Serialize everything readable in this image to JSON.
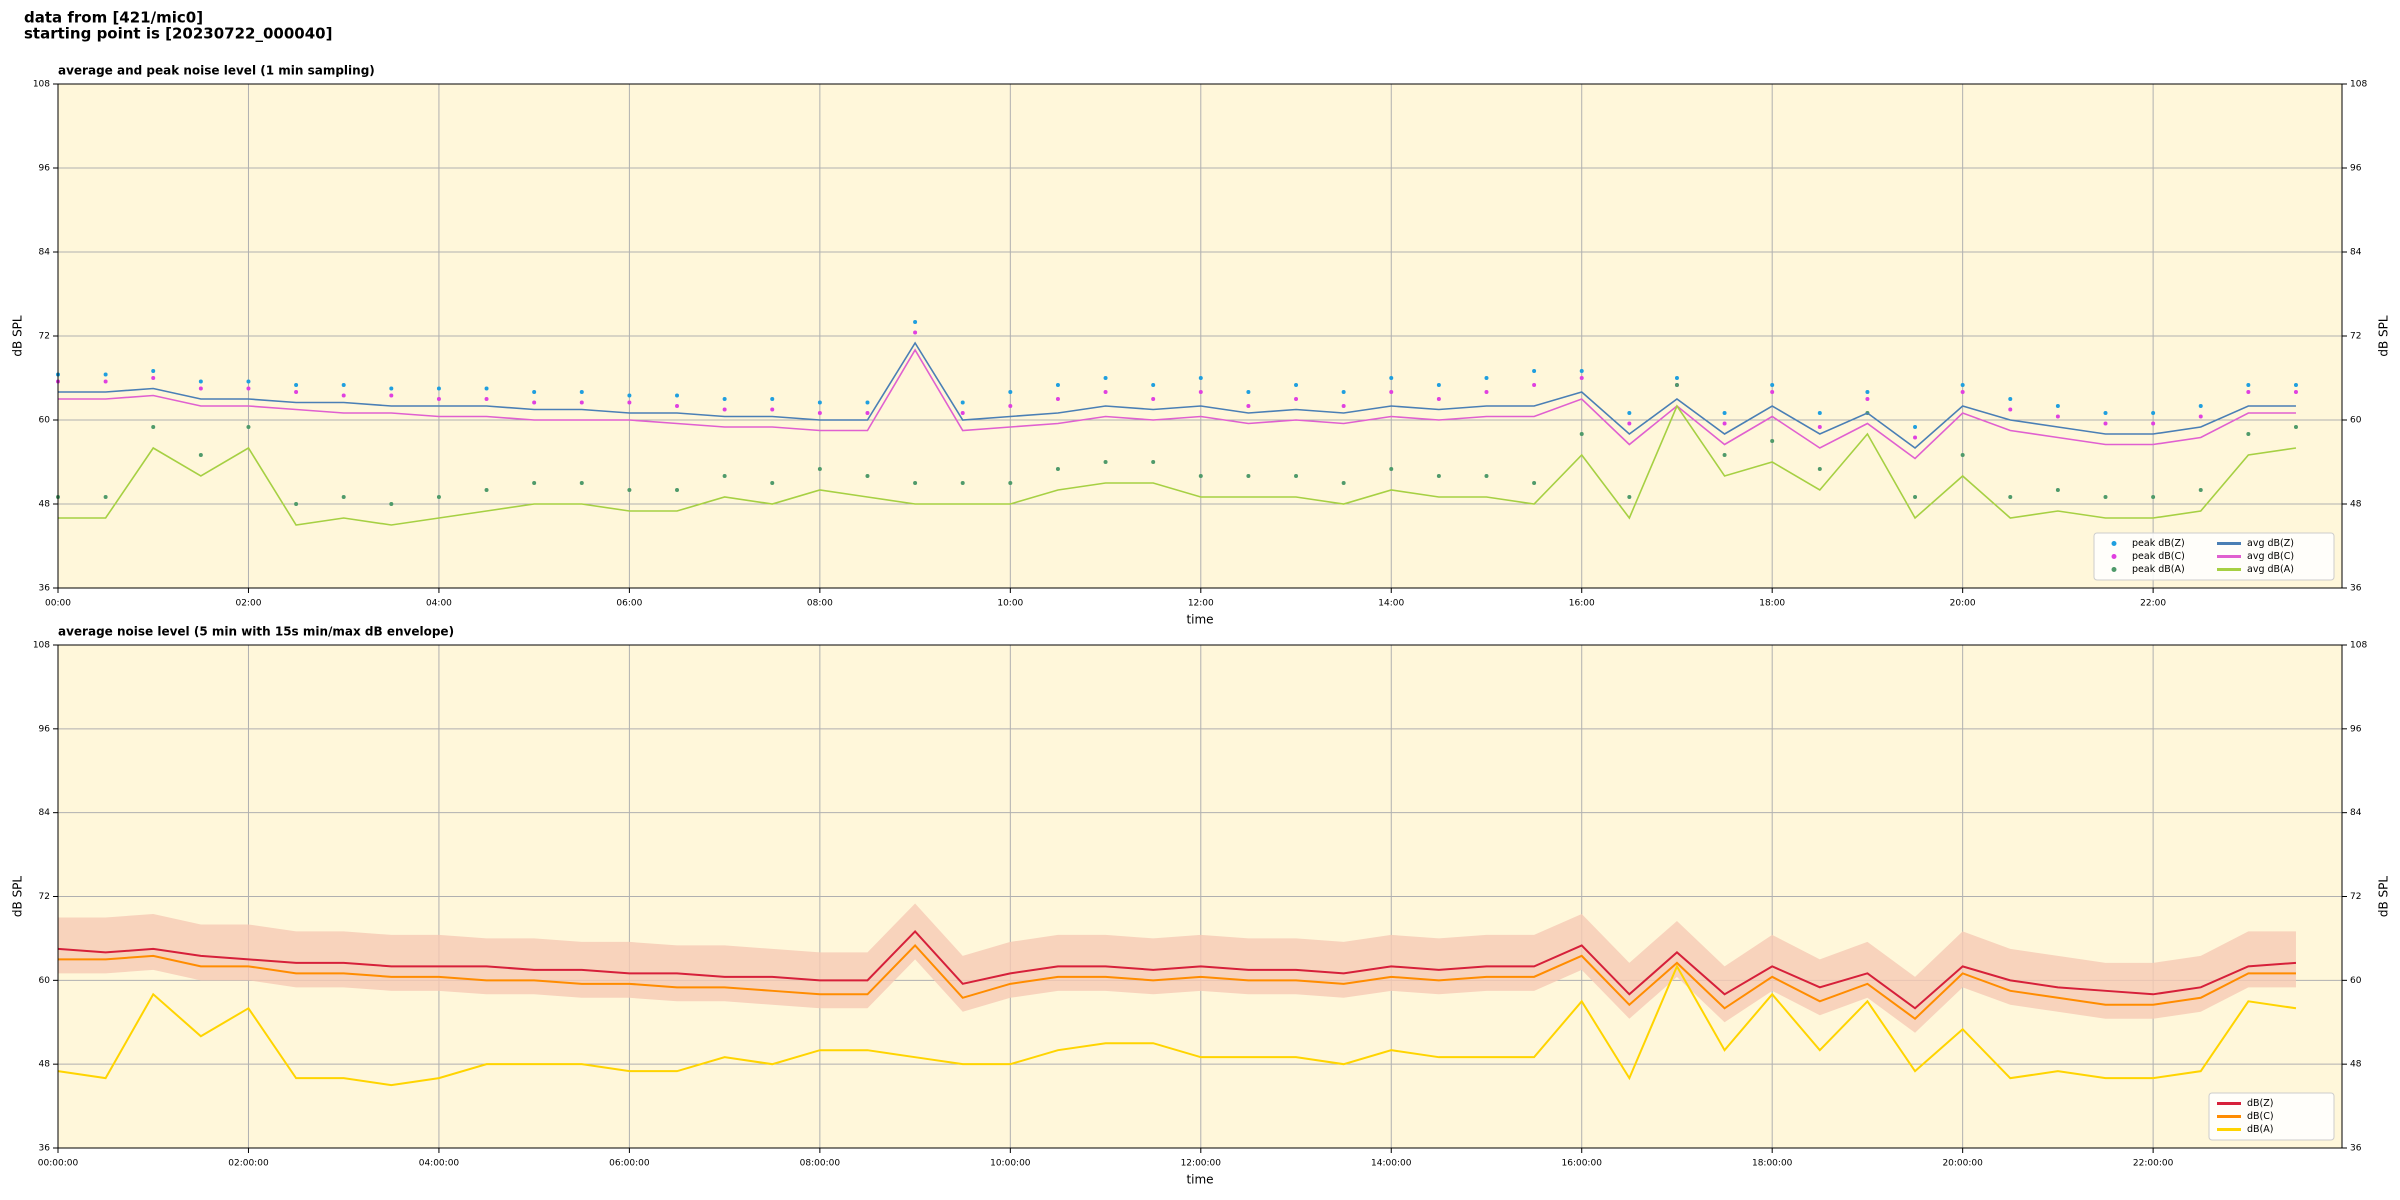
{
  "header": [
    "data from [421/mic0]",
    "starting point is [20230722_000040]"
  ],
  "chart_data": [
    {
      "type": "line",
      "title": "average and peak noise level (1 min sampling)",
      "xlabel": "time",
      "ylabel": "dB SPL",
      "y2label": "dB SPL",
      "x": [
        "00:00",
        "00:30",
        "01:00",
        "01:30",
        "02:00",
        "02:30",
        "03:00",
        "03:30",
        "04:00",
        "04:30",
        "05:00",
        "05:30",
        "06:00",
        "06:30",
        "07:00",
        "07:30",
        "08:00",
        "08:30",
        "09:00",
        "09:30",
        "10:00",
        "10:30",
        "11:00",
        "11:30",
        "12:00",
        "12:30",
        "13:00",
        "13:30",
        "14:00",
        "14:30",
        "15:00",
        "15:30",
        "16:00",
        "16:30",
        "17:00",
        "17:30",
        "18:00",
        "18:30",
        "19:00",
        "19:30",
        "20:00",
        "20:30",
        "21:00",
        "21:30",
        "22:00",
        "22:30",
        "23:00",
        "23:30"
      ],
      "xlim": [
        "00:00",
        "23:59"
      ],
      "xticks": [
        "00:00",
        "02:00",
        "04:00",
        "06:00",
        "08:00",
        "10:00",
        "12:00",
        "14:00",
        "16:00",
        "18:00",
        "20:00",
        "22:00"
      ],
      "ylim": [
        36,
        108
      ],
      "yticks": [
        36,
        48,
        60,
        72,
        84,
        96,
        108
      ],
      "y2lim": [
        36,
        108
      ],
      "y2ticks": [
        36,
        48,
        60,
        72,
        84,
        96,
        108
      ],
      "grid": true,
      "legend": "lower right",
      "legend_columns": 2,
      "series": [
        {
          "name": "peak dB(Z)",
          "style": "dots",
          "color": "#1f9fdf",
          "values": [
            66.5,
            66.5,
            67,
            65.5,
            65.5,
            65,
            65,
            64.5,
            64.5,
            64.5,
            64,
            64,
            63.5,
            63.5,
            63,
            63,
            62.5,
            62.5,
            74,
            62.5,
            64,
            65,
            66,
            65,
            66,
            64,
            65,
            64,
            66,
            65,
            66,
            67,
            67,
            61,
            66,
            61,
            65,
            61,
            64,
            59,
            65,
            63,
            62,
            61,
            61,
            62,
            65,
            65
          ]
        },
        {
          "name": "peak dB(C)",
          "style": "dots",
          "color": "#e040e0",
          "values": [
            65.5,
            65.5,
            66,
            64.5,
            64.5,
            64,
            63.5,
            63.5,
            63,
            63,
            62.5,
            62.5,
            62.5,
            62,
            61.5,
            61.5,
            61,
            61,
            72.5,
            61,
            62,
            63,
            64,
            63,
            64,
            62,
            63,
            62,
            64,
            63,
            64,
            65,
            66,
            59.5,
            65,
            59.5,
            64,
            59,
            63,
            57.5,
            64,
            61.5,
            60.5,
            59.5,
            59.5,
            60.5,
            64,
            64
          ]
        },
        {
          "name": "peak dB(A)",
          "style": "dots",
          "color": "#4f9a6a",
          "values": [
            49,
            49,
            59,
            55,
            59,
            48,
            49,
            48,
            49,
            50,
            51,
            51,
            50,
            50,
            52,
            51,
            53,
            52,
            51,
            51,
            51,
            53,
            54,
            54,
            52,
            52,
            52,
            51,
            53,
            52,
            52,
            51,
            58,
            49,
            65,
            55,
            57,
            53,
            61,
            49,
            55,
            49,
            50,
            49,
            49,
            50,
            58,
            59
          ]
        },
        {
          "name": "avg dB(Z)",
          "style": "line",
          "color": "#4a7fb5",
          "values": [
            64,
            64,
            64.5,
            63,
            63,
            62.5,
            62.5,
            62,
            62,
            62,
            61.5,
            61.5,
            61,
            61,
            60.5,
            60.5,
            60,
            60,
            71,
            60,
            60.5,
            61,
            62,
            61.5,
            62,
            61,
            61.5,
            61,
            62,
            61.5,
            62,
            62,
            64,
            58,
            63,
            58,
            62,
            58,
            61,
            56,
            62,
            60,
            59,
            58,
            58,
            59,
            62,
            62
          ]
        },
        {
          "name": "avg dB(C)",
          "style": "line",
          "color": "#e060d0",
          "values": [
            63,
            63,
            63.5,
            62,
            62,
            61.5,
            61,
            61,
            60.5,
            60.5,
            60,
            60,
            60,
            59.5,
            59,
            59,
            58.5,
            58.5,
            70,
            58.5,
            59,
            59.5,
            60.5,
            60,
            60.5,
            59.5,
            60,
            59.5,
            60.5,
            60,
            60.5,
            60.5,
            63,
            56.5,
            62,
            56.5,
            60.5,
            56,
            59.5,
            54.5,
            61,
            58.5,
            57.5,
            56.5,
            56.5,
            57.5,
            61,
            61
          ]
        },
        {
          "name": "avg dB(A)",
          "style": "line",
          "color": "#a6d043",
          "values": [
            46,
            46,
            56,
            52,
            56,
            45,
            46,
            45,
            46,
            47,
            48,
            48,
            47,
            47,
            49,
            48,
            50,
            49,
            48,
            48,
            48,
            50,
            51,
            51,
            49,
            49,
            49,
            48,
            50,
            49,
            49,
            48,
            55,
            46,
            62,
            52,
            54,
            50,
            58,
            46,
            52,
            46,
            47,
            46,
            46,
            47,
            55,
            56
          ]
        }
      ]
    },
    {
      "type": "line",
      "title": "average noise level (5 min with 15s min/max dB envelope)",
      "xlabel": "time",
      "ylabel": "dB SPL",
      "y2label": "dB SPL",
      "x": [
        "00:00:00",
        "00:30:00",
        "01:00:00",
        "01:30:00",
        "02:00:00",
        "02:30:00",
        "03:00:00",
        "03:30:00",
        "04:00:00",
        "04:30:00",
        "05:00:00",
        "05:30:00",
        "06:00:00",
        "06:30:00",
        "07:00:00",
        "07:30:00",
        "08:00:00",
        "08:30:00",
        "09:00:00",
        "09:30:00",
        "10:00:00",
        "10:30:00",
        "11:00:00",
        "11:30:00",
        "12:00:00",
        "12:30:00",
        "13:00:00",
        "13:30:00",
        "14:00:00",
        "14:30:00",
        "15:00:00",
        "15:30:00",
        "16:00:00",
        "16:30:00",
        "17:00:00",
        "17:30:00",
        "18:00:00",
        "18:30:00",
        "19:00:00",
        "19:30:00",
        "20:00:00",
        "20:30:00",
        "21:00:00",
        "21:30:00",
        "22:00:00",
        "22:30:00",
        "23:00:00",
        "23:30:00"
      ],
      "xlim": [
        "00:00:00",
        "23:59:00"
      ],
      "xticks": [
        "00:00:00",
        "02:00:00",
        "04:00:00",
        "06:00:00",
        "08:00:00",
        "10:00:00",
        "12:00:00",
        "14:00:00",
        "16:00:00",
        "18:00:00",
        "20:00:00",
        "22:00:00"
      ],
      "ylim": [
        36,
        108
      ],
      "yticks": [
        36,
        48,
        60,
        72,
        84,
        96,
        108
      ],
      "y2lim": [
        36,
        108
      ],
      "y2ticks": [
        36,
        48,
        60,
        72,
        84,
        96,
        108
      ],
      "grid": true,
      "legend": "lower right",
      "legend_columns": 1,
      "envelope": {
        "color": "#f6c9b4",
        "high": [
          69,
          69,
          69.5,
          68,
          68,
          67,
          67,
          66.5,
          66.5,
          66,
          66,
          65.5,
          65.5,
          65,
          65,
          64.5,
          64,
          64,
          71,
          63.5,
          65.5,
          66.5,
          66.5,
          66,
          66.5,
          66,
          66,
          65.5,
          66.5,
          66,
          66.5,
          66.5,
          69.5,
          62.5,
          68.5,
          62,
          66.5,
          63,
          65.5,
          60.5,
          67,
          64.5,
          63.5,
          62.5,
          62.5,
          63.5,
          67,
          67
        ],
        "low": [
          61,
          61,
          61.5,
          60,
          60,
          59,
          59,
          58.5,
          58.5,
          58,
          58,
          57.5,
          57.5,
          57,
          57,
          56.5,
          56,
          56,
          63,
          55.5,
          57.5,
          58.5,
          58.5,
          58,
          58.5,
          58,
          58,
          57.5,
          58.5,
          58,
          58.5,
          58.5,
          61.5,
          54.5,
          60.5,
          54,
          58.5,
          55,
          57.5,
          52.5,
          59,
          56.5,
          55.5,
          54.5,
          54.5,
          55.5,
          59,
          59
        ]
      },
      "series": [
        {
          "name": "dB(Z)",
          "style": "line",
          "color": "#d6203a",
          "values": [
            64.5,
            64,
            64.5,
            63.5,
            63,
            62.5,
            62.5,
            62,
            62,
            62,
            61.5,
            61.5,
            61,
            61,
            60.5,
            60.5,
            60,
            60,
            67,
            59.5,
            61,
            62,
            62,
            61.5,
            62,
            61.5,
            61.5,
            61,
            62,
            61.5,
            62,
            62,
            65,
            58,
            64,
            58,
            62,
            59,
            61,
            56,
            62,
            60,
            59,
            58.5,
            58,
            59,
            62,
            62.5
          ]
        },
        {
          "name": "dB(C)",
          "style": "line",
          "color": "#ff8c00",
          "values": [
            63,
            63,
            63.5,
            62,
            62,
            61,
            61,
            60.5,
            60.5,
            60,
            60,
            59.5,
            59.5,
            59,
            59,
            58.5,
            58,
            58,
            65,
            57.5,
            59.5,
            60.5,
            60.5,
            60,
            60.5,
            60,
            60,
            59.5,
            60.5,
            60,
            60.5,
            60.5,
            63.5,
            56.5,
            62.5,
            56,
            60.5,
            57,
            59.5,
            54.5,
            61,
            58.5,
            57.5,
            56.5,
            56.5,
            57.5,
            61,
            61
          ]
        },
        {
          "name": "dB(A)",
          "style": "line",
          "color": "#ffd400",
          "values": [
            47,
            46,
            58,
            52,
            56,
            46,
            46,
            45,
            46,
            48,
            48,
            48,
            47,
            47,
            49,
            48,
            50,
            50,
            49,
            48,
            48,
            50,
            51,
            51,
            49,
            49,
            49,
            48,
            50,
            49,
            49,
            49,
            57,
            46,
            62,
            50,
            58,
            50,
            57,
            47,
            53,
            46,
            47,
            46,
            46,
            47,
            57,
            56
          ]
        }
      ]
    }
  ]
}
